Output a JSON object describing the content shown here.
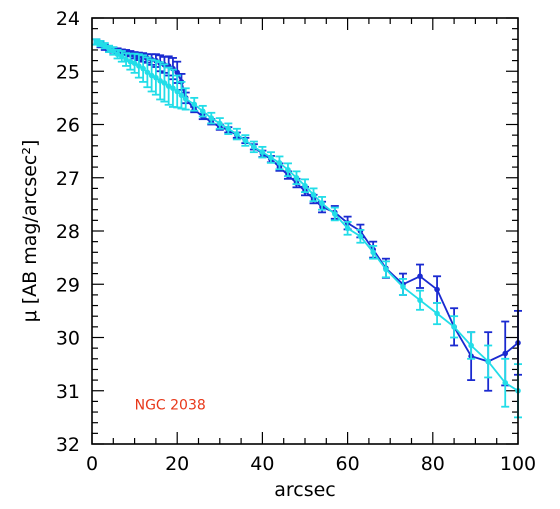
{
  "chart_data": {
    "type": "line",
    "title": "",
    "xlabel": "arcsec",
    "ylabel": "μ [AB mag/arcsec²]",
    "xlim": [
      0,
      100
    ],
    "ylim": [
      32,
      24
    ],
    "y_inverted": true,
    "grid": false,
    "x_ticks": [
      0,
      20,
      40,
      60,
      80,
      100
    ],
    "y_ticks": [
      24,
      25,
      26,
      27,
      28,
      29,
      30,
      31,
      32
    ],
    "x_tick_labels": [
      "0",
      "20",
      "40",
      "60",
      "80",
      "100"
    ],
    "y_tick_labels": [
      "24",
      "25",
      "26",
      "27",
      "28",
      "29",
      "30",
      "31",
      "32"
    ],
    "annotation": {
      "text": "NGC 2038",
      "color": "#e8381a",
      "x": 10,
      "y": 31.35
    },
    "series": [
      {
        "color": "#1a2ad0",
        "points": [
          {
            "x": 1,
            "y": 24.45,
            "err": 0.05
          },
          {
            "x": 2,
            "y": 24.5,
            "err": 0.05
          },
          {
            "x": 3,
            "y": 24.55,
            "err": 0.05
          },
          {
            "x": 4,
            "y": 24.58,
            "err": 0.05
          },
          {
            "x": 5,
            "y": 24.6,
            "err": 0.05
          },
          {
            "x": 6,
            "y": 24.62,
            "err": 0.05
          },
          {
            "x": 7,
            "y": 24.64,
            "err": 0.05
          },
          {
            "x": 8,
            "y": 24.65,
            "err": 0.05
          },
          {
            "x": 9,
            "y": 24.67,
            "err": 0.05
          },
          {
            "x": 10,
            "y": 24.7,
            "err": 0.06
          },
          {
            "x": 11,
            "y": 24.72,
            "err": 0.07
          },
          {
            "x": 12,
            "y": 24.74,
            "err": 0.08
          },
          {
            "x": 13,
            "y": 24.76,
            "err": 0.08
          },
          {
            "x": 14,
            "y": 24.78,
            "err": 0.1
          },
          {
            "x": 15,
            "y": 24.8,
            "err": 0.12
          },
          {
            "x": 16,
            "y": 24.85,
            "err": 0.15
          },
          {
            "x": 17,
            "y": 24.88,
            "err": 0.15
          },
          {
            "x": 18,
            "y": 24.9,
            "err": 0.18
          },
          {
            "x": 19,
            "y": 24.95,
            "err": 0.2
          },
          {
            "x": 20,
            "y": 25.02,
            "err": 0.2
          },
          {
            "x": 21,
            "y": 25.2,
            "err": 0.15
          },
          {
            "x": 22,
            "y": 25.5,
            "err": 0.1
          },
          {
            "x": 24,
            "y": 25.72,
            "err": 0.05
          },
          {
            "x": 26,
            "y": 25.85,
            "err": 0.05
          },
          {
            "x": 28,
            "y": 25.95,
            "err": 0.05
          },
          {
            "x": 30,
            "y": 26.05,
            "err": 0.05
          },
          {
            "x": 32,
            "y": 26.1,
            "err": 0.05
          },
          {
            "x": 34,
            "y": 26.2,
            "err": 0.05
          },
          {
            "x": 36,
            "y": 26.3,
            "err": 0.05
          },
          {
            "x": 38,
            "y": 26.42,
            "err": 0.05
          },
          {
            "x": 40,
            "y": 26.55,
            "err": 0.06
          },
          {
            "x": 42,
            "y": 26.65,
            "err": 0.06
          },
          {
            "x": 44,
            "y": 26.8,
            "err": 0.07
          },
          {
            "x": 46,
            "y": 26.95,
            "err": 0.07
          },
          {
            "x": 48,
            "y": 27.1,
            "err": 0.08
          },
          {
            "x": 50,
            "y": 27.25,
            "err": 0.08
          },
          {
            "x": 52,
            "y": 27.4,
            "err": 0.08
          },
          {
            "x": 54,
            "y": 27.55,
            "err": 0.1
          },
          {
            "x": 57,
            "y": 27.65,
            "err": 0.12
          },
          {
            "x": 60,
            "y": 27.85,
            "err": 0.12
          },
          {
            "x": 63,
            "y": 28.0,
            "err": 0.12
          },
          {
            "x": 66,
            "y": 28.35,
            "err": 0.15
          },
          {
            "x": 69,
            "y": 28.7,
            "err": 0.18
          },
          {
            "x": 73,
            "y": 29.0,
            "err": 0.2
          },
          {
            "x": 77,
            "y": 28.85,
            "err": 0.22
          },
          {
            "x": 81,
            "y": 29.1,
            "err": 0.25
          },
          {
            "x": 85,
            "y": 29.8,
            "err": 0.35
          },
          {
            "x": 89,
            "y": 30.35,
            "err": 0.45
          },
          {
            "x": 93,
            "y": 30.45,
            "err": 0.55
          },
          {
            "x": 97,
            "y": 30.3,
            "err": 0.6
          },
          {
            "x": 100,
            "y": 30.1,
            "err": 0.6
          }
        ]
      },
      {
        "color": "#22dde8",
        "points": [
          {
            "x": 1,
            "y": 24.45,
            "err": 0.05
          },
          {
            "x": 2,
            "y": 24.48,
            "err": 0.05
          },
          {
            "x": 3,
            "y": 24.52,
            "err": 0.05
          },
          {
            "x": 4,
            "y": 24.58,
            "err": 0.06
          },
          {
            "x": 5,
            "y": 24.62,
            "err": 0.07
          },
          {
            "x": 6,
            "y": 24.68,
            "err": 0.08
          },
          {
            "x": 7,
            "y": 24.72,
            "err": 0.1
          },
          {
            "x": 8,
            "y": 24.78,
            "err": 0.12
          },
          {
            "x": 9,
            "y": 24.82,
            "err": 0.15
          },
          {
            "x": 10,
            "y": 24.85,
            "err": 0.18
          },
          {
            "x": 11,
            "y": 24.9,
            "err": 0.22
          },
          {
            "x": 12,
            "y": 24.95,
            "err": 0.25
          },
          {
            "x": 13,
            "y": 25.02,
            "err": 0.28
          },
          {
            "x": 14,
            "y": 25.08,
            "err": 0.3
          },
          {
            "x": 15,
            "y": 25.12,
            "err": 0.32
          },
          {
            "x": 16,
            "y": 25.18,
            "err": 0.35
          },
          {
            "x": 17,
            "y": 25.22,
            "err": 0.35
          },
          {
            "x": 18,
            "y": 25.28,
            "err": 0.35
          },
          {
            "x": 19,
            "y": 25.32,
            "err": 0.35
          },
          {
            "x": 20,
            "y": 25.38,
            "err": 0.3
          },
          {
            "x": 21,
            "y": 25.45,
            "err": 0.25
          },
          {
            "x": 22,
            "y": 25.52,
            "err": 0.2
          },
          {
            "x": 24,
            "y": 25.62,
            "err": 0.12
          },
          {
            "x": 26,
            "y": 25.75,
            "err": 0.1
          },
          {
            "x": 28,
            "y": 25.88,
            "err": 0.1
          },
          {
            "x": 30,
            "y": 25.98,
            "err": 0.1
          },
          {
            "x": 32,
            "y": 26.08,
            "err": 0.1
          },
          {
            "x": 34,
            "y": 26.18,
            "err": 0.1
          },
          {
            "x": 36,
            "y": 26.3,
            "err": 0.1
          },
          {
            "x": 38,
            "y": 26.42,
            "err": 0.1
          },
          {
            "x": 40,
            "y": 26.52,
            "err": 0.1
          },
          {
            "x": 42,
            "y": 26.62,
            "err": 0.1
          },
          {
            "x": 44,
            "y": 26.72,
            "err": 0.12
          },
          {
            "x": 46,
            "y": 26.85,
            "err": 0.12
          },
          {
            "x": 48,
            "y": 27.0,
            "err": 0.12
          },
          {
            "x": 50,
            "y": 27.15,
            "err": 0.12
          },
          {
            "x": 52,
            "y": 27.32,
            "err": 0.12
          },
          {
            "x": 54,
            "y": 27.48,
            "err": 0.12
          },
          {
            "x": 57,
            "y": 27.68,
            "err": 0.12
          },
          {
            "x": 60,
            "y": 27.95,
            "err": 0.12
          },
          {
            "x": 63,
            "y": 28.1,
            "err": 0.12
          },
          {
            "x": 66,
            "y": 28.4,
            "err": 0.12
          },
          {
            "x": 69,
            "y": 28.72,
            "err": 0.15
          },
          {
            "x": 73,
            "y": 29.05,
            "err": 0.15
          },
          {
            "x": 77,
            "y": 29.3,
            "err": 0.18
          },
          {
            "x": 81,
            "y": 29.55,
            "err": 0.2
          },
          {
            "x": 85,
            "y": 29.8,
            "err": 0.2
          },
          {
            "x": 89,
            "y": 30.15,
            "err": 0.25
          },
          {
            "x": 93,
            "y": 30.45,
            "err": 0.3
          },
          {
            "x": 97,
            "y": 30.85,
            "err": 0.45
          },
          {
            "x": 100,
            "y": 31.0,
            "err": 0.5
          }
        ]
      }
    ]
  }
}
